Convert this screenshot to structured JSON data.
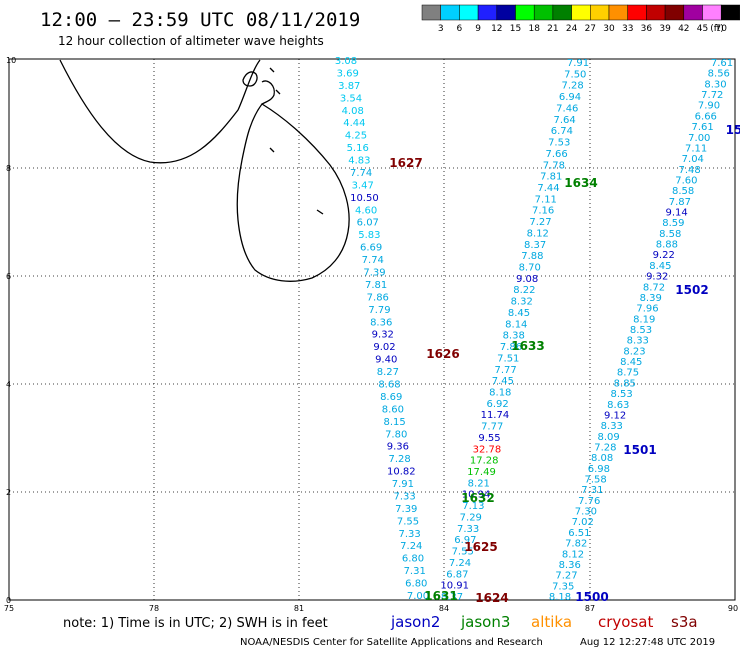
{
  "header": {
    "title": "12:00 – 23:59 UTC 08/11/2019",
    "subtitle": "12 hour collection of altimeter wave heights"
  },
  "legend": {
    "unit": "(ft)",
    "swatches": [
      {
        "color": "#808080",
        "label": "3"
      },
      {
        "color": "#00d0ff",
        "label": "6"
      },
      {
        "color": "#00ffff",
        "label": "9"
      },
      {
        "color": "#2020ff",
        "label": "12"
      },
      {
        "color": "#0000a0",
        "label": "15"
      },
      {
        "color": "#00ff00",
        "label": "18"
      },
      {
        "color": "#00c000",
        "label": "21"
      },
      {
        "color": "#008000",
        "label": "24"
      },
      {
        "color": "#ffff00",
        "label": "27"
      },
      {
        "color": "#ffd000",
        "label": "30"
      },
      {
        "color": "#ff9000",
        "label": "33"
      },
      {
        "color": "#ff0000",
        "label": "36"
      },
      {
        "color": "#c00000",
        "label": "39"
      },
      {
        "color": "#800000",
        "label": "42"
      },
      {
        "color": "#a000a0",
        "label": "45"
      },
      {
        "color": "#ff80ff",
        "label": "70"
      },
      {
        "color": "#000000",
        "label": ""
      }
    ]
  },
  "map": {
    "lon_ticks": [
      "75",
      "78",
      "81",
      "84",
      "87",
      "90"
    ],
    "lat_ticks": [
      "0",
      "2",
      "4",
      "6",
      "8",
      "10"
    ]
  },
  "passes": [
    {
      "id": "1627",
      "color": "#800000"
    },
    {
      "id": "1626",
      "color": "#800000"
    },
    {
      "id": "1625",
      "color": "#800000"
    },
    {
      "id": "1624",
      "color": "#800000"
    },
    {
      "id": "1634",
      "color": "#008000"
    },
    {
      "id": "1633",
      "color": "#008000"
    },
    {
      "id": "1632",
      "color": "#008000"
    },
    {
      "id": "1631",
      "color": "#008000"
    },
    {
      "id": "1502",
      "color": "#0000c0"
    },
    {
      "id": "1501",
      "color": "#0000c0"
    },
    {
      "id": "1500",
      "color": "#0000c0"
    },
    {
      "id": "15",
      "color": "#0000c0"
    }
  ],
  "tracks": {
    "track1": [
      "3.08",
      "3.69",
      "3.87",
      "3.54",
      "4.08",
      "4.44",
      "4.25",
      "5.16",
      "4.83",
      "7.74",
      "3.47",
      "10.50",
      "4.60",
      "6.07",
      "5.83",
      "6.69",
      "7.74",
      "7.39",
      "7.81",
      "7.86",
      "7.79",
      "8.36",
      "9.32",
      "9.02",
      "9.40",
      "8.27",
      "8.68",
      "8.69",
      "8.60",
      "8.15",
      "7.80",
      "9.36",
      "7.28",
      "10.82",
      "7.91",
      "7.33",
      "7.39",
      "7.55",
      "7.33",
      "7.24",
      "6.80",
      "7.31",
      "6.80",
      "7.00"
    ],
    "track2": [
      "7.91",
      "7.50",
      "7.28",
      "6.94",
      "7.46",
      "7.64",
      "6.74",
      "7.53",
      "7.66",
      "7.78",
      "7.81",
      "7.44",
      "7.11",
      "7.16",
      "7.27",
      "8.12",
      "8.37",
      "7.88",
      "8.70",
      "9.08",
      "8.22",
      "8.32",
      "8.45",
      "8.14",
      "8.38",
      "7.86",
      "7.51",
      "7.77",
      "7.45",
      "8.18",
      "6.92",
      "11.74",
      "7.77",
      "9.55",
      "32.78",
      "17.28",
      "17.49",
      "8.21",
      "10.94",
      "7.13",
      "7.29",
      "7.33",
      "6.97",
      "7.55",
      "7.24",
      "6.87",
      "10.91",
      "8.37"
    ],
    "track3": [
      "7.61",
      "8.56",
      "8.30",
      "7.72",
      "7.90",
      "6.66",
      "7.61",
      "7.00",
      "7.11",
      "7.04",
      "7.48",
      "7.60",
      "8.58",
      "7.87",
      "9.14",
      "8.59",
      "8.58",
      "8.88",
      "9.22",
      "8.45",
      "9.32",
      "8.72",
      "8.39",
      "7.96",
      "8.19",
      "8.53",
      "8.33",
      "8.23",
      "8.45",
      "8.75",
      "8.85",
      "8.53",
      "8.63",
      "9.12",
      "8.33",
      "8.09",
      "7.28",
      "8.08",
      "6.98",
      "7.58",
      "7.31",
      "7.76",
      "7.30",
      "7.02",
      "6.51",
      "7.82",
      "8.12",
      "8.36",
      "7.27",
      "7.35",
      "8.18"
    ]
  },
  "footer": {
    "note": "note:  1) Time is in UTC;  2) SWH is in feet",
    "satellites": [
      {
        "name": "jason2",
        "color": "#0000c0"
      },
      {
        "name": "jason3",
        "color": "#008000"
      },
      {
        "name": "altika",
        "color": "#ff9000"
      },
      {
        "name": "cryosat",
        "color": "#c00000"
      },
      {
        "name": "s3a",
        "color": "#800000"
      }
    ],
    "credit": "NOAA/NESDIS Center for Satellite Applications and Research",
    "timestamp": "Aug 12 12:27:48 UTC 2019"
  }
}
